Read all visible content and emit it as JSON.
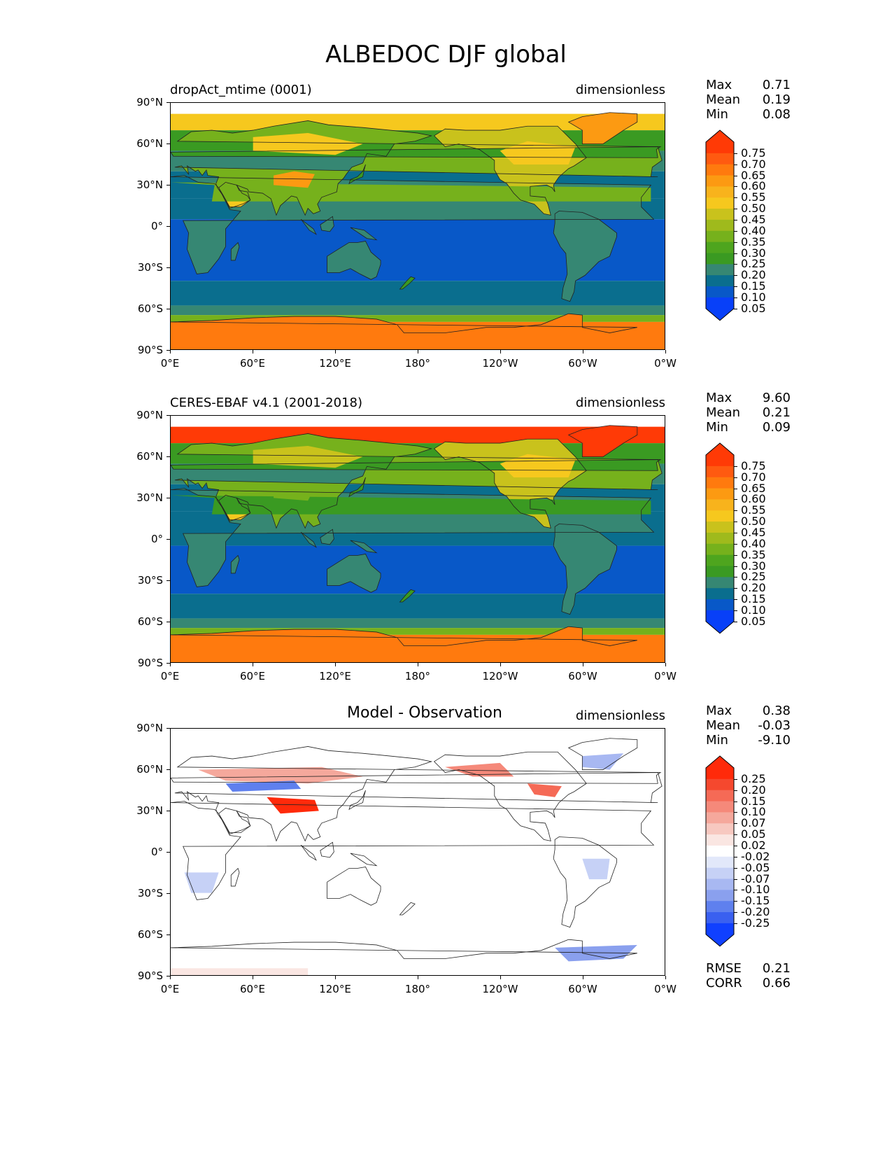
{
  "title": "ALBEDOC DJF global",
  "units": "dimensionless",
  "lat_labels": [
    "90°N",
    "60°N",
    "30°N",
    "0°",
    "30°S",
    "60°S",
    "90°S"
  ],
  "lon_labels": [
    "0°E",
    "60°E",
    "120°E",
    "180°",
    "120°W",
    "60°W",
    "0°W"
  ],
  "stat_keys": {
    "max": "Max",
    "mean": "Mean",
    "min": "Min",
    "rmse": "RMSE",
    "corr": "CORR"
  },
  "panels": [
    {
      "title": "dropAct_mtime (0001)",
      "stats": {
        "max": "0.71",
        "mean": "0.19",
        "min": "0.08"
      },
      "field": "model"
    },
    {
      "title": "CERES-EBAF v4.1 (2001-2018)",
      "stats": {
        "max": "9.60",
        "mean": "0.21",
        "min": "0.09"
      },
      "field": "obs"
    },
    {
      "title": "Model - Observation",
      "stats": {
        "max": "0.38",
        "mean": "-0.03",
        "min": "-9.10"
      },
      "field": "diff",
      "rmse": "0.21",
      "corr": "0.66"
    }
  ],
  "colorbar_abs": {
    "levels": [
      "0.75",
      "0.70",
      "0.65",
      "0.60",
      "0.55",
      "0.50",
      "0.45",
      "0.40",
      "0.35",
      "0.30",
      "0.25",
      "0.20",
      "0.15",
      "0.10",
      "0.05"
    ],
    "colors": [
      "#ff3a06",
      "#ff5a10",
      "#ff7a0e",
      "#fc9a12",
      "#f8b31c",
      "#f6c81e",
      "#c9c21c",
      "#9fba1c",
      "#76b11c",
      "#4ea51e",
      "#3a9a22",
      "#368773",
      "#0a6e8e",
      "#0858c8",
      "#0840f8"
    ]
  },
  "colorbar_diff": {
    "levels": [
      "0.25",
      "0.20",
      "0.15",
      "0.10",
      "0.07",
      "0.05",
      "0.02",
      "-0.02",
      "-0.05",
      "-0.07",
      "-0.10",
      "-0.15",
      "-0.20",
      "-0.25"
    ],
    "colors": [
      "#ff2a0a",
      "#f5482e",
      "#f56a56",
      "#f5897a",
      "#f5a89c",
      "#f7c8c0",
      "#fae6e2",
      "#ffffff",
      "#e2e8fa",
      "#c6d1f6",
      "#a8b8f2",
      "#8aa0ee",
      "#5f80ee",
      "#3a60f0",
      "#1040ff"
    ]
  },
  "colors": {
    "ocean_tropics_abs": "#0858c8",
    "ocean_mid_abs": "#0a6e8e",
    "land_abs": "#368773",
    "ice_abs": "#ff7a0e",
    "diff_background": "#ffffff"
  }
}
